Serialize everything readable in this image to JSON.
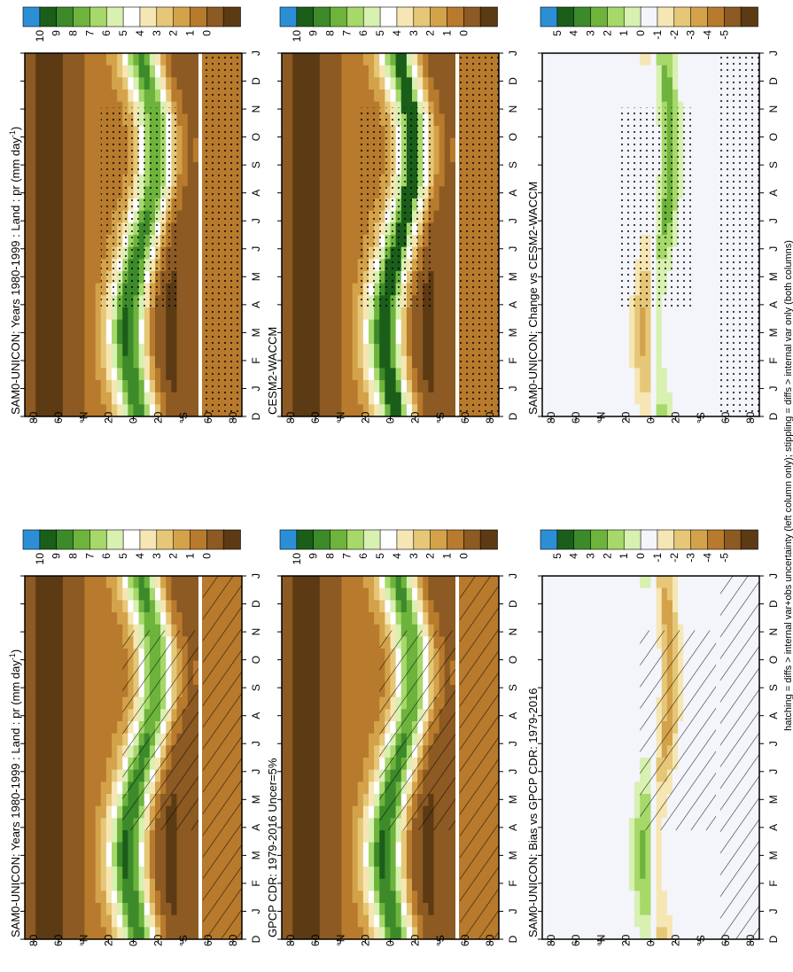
{
  "chart_data": [
    {
      "type": "heatmap",
      "title": "SAM0-UNICON: Years 1980-1999 : Land : pr (mm day",
      "title_sup": "-1",
      "title_tail": ")",
      "x_ticks": [
        "D",
        "J",
        "F",
        "M",
        "A",
        "M",
        "J",
        "J",
        "A",
        "S",
        "O",
        "N",
        "D",
        "J"
      ],
      "y_ticks": [
        "80",
        "60",
        "°N",
        "20",
        "0",
        "20",
        "°S",
        "60",
        "80"
      ],
      "colorbar": [
        "10",
        "9",
        "8",
        "7",
        "6",
        "5",
        "4",
        "3",
        "2",
        "1",
        "0"
      ],
      "overlay": "hatching"
    },
    {
      "type": "heatmap",
      "title": "SAM0-UNICON: Years 1980-1999 : Land : pr (mm day",
      "title_sup": "-1",
      "title_tail": ")",
      "x_ticks": [
        "D",
        "J",
        "F",
        "M",
        "A",
        "M",
        "J",
        "J",
        "A",
        "S",
        "O",
        "N",
        "D",
        "J"
      ],
      "y_ticks": [
        "80",
        "60",
        "°N",
        "20",
        "0",
        "20",
        "°S",
        "60",
        "80"
      ],
      "colorbar": [
        "10",
        "9",
        "8",
        "7",
        "6",
        "5",
        "4",
        "3",
        "2",
        "1",
        "0"
      ],
      "overlay": "stippling"
    },
    {
      "type": "heatmap",
      "title": "GPCP CDR: 1979-2016 Uncer=5%",
      "x_ticks": [
        "D",
        "J",
        "F",
        "M",
        "A",
        "M",
        "J",
        "J",
        "A",
        "S",
        "O",
        "N",
        "D",
        "J"
      ],
      "y_ticks": [
        "80",
        "60",
        "°N",
        "20",
        "0",
        "20",
        "°S",
        "60",
        "80"
      ],
      "colorbar": [
        "10",
        "9",
        "8",
        "7",
        "6",
        "5",
        "4",
        "3",
        "2",
        "1",
        "0"
      ],
      "overlay": "hatching"
    },
    {
      "type": "heatmap",
      "title": "CESM2-WACCM",
      "x_ticks": [
        "D",
        "J",
        "F",
        "M",
        "A",
        "M",
        "J",
        "J",
        "A",
        "S",
        "O",
        "N",
        "D",
        "J"
      ],
      "y_ticks": [
        "80",
        "60",
        "°N",
        "20",
        "0",
        "20",
        "°S",
        "60",
        "80"
      ],
      "colorbar": [
        "10",
        "9",
        "8",
        "7",
        "6",
        "5",
        "4",
        "3",
        "2",
        "1",
        "0"
      ],
      "overlay": "stippling"
    },
    {
      "type": "heatmap",
      "title": "SAM0-UNICON: Bias vs GPCP CDR: 1979-2016",
      "x_ticks": [
        "D",
        "J",
        "F",
        "M",
        "A",
        "M",
        "J",
        "J",
        "A",
        "S",
        "O",
        "N",
        "D",
        "J"
      ],
      "y_ticks": [
        "80",
        "60",
        "°N",
        "20",
        "0",
        "20",
        "°S",
        "60",
        "80"
      ],
      "colorbar": [
        "5",
        "4",
        "3",
        "2",
        "1",
        "0",
        "-1",
        "-2",
        "-3",
        "-4",
        "-5"
      ],
      "overlay": "hatching"
    },
    {
      "type": "heatmap",
      "title": "SAM0-UNICON: Change vs CESM2-WACCM",
      "x_ticks": [
        "D",
        "J",
        "F",
        "M",
        "A",
        "M",
        "J",
        "J",
        "A",
        "S",
        "O",
        "N",
        "D",
        "J"
      ],
      "y_ticks": [
        "80",
        "60",
        "°N",
        "20",
        "0",
        "20",
        "°S",
        "60",
        "80"
      ],
      "colorbar": [
        "5",
        "4",
        "3",
        "2",
        "1",
        "0",
        "-1",
        "-2",
        "-3",
        "-4",
        "-5"
      ],
      "overlay": "stippling"
    }
  ],
  "footnote": "hatching = diffs > internal var+obs uncertainty (left column only); stippling = diffs > internal var only (both columns)",
  "colors": {
    "abs_ramp": [
      "#2c8fd6",
      "#1a5e1a",
      "#3c8a2a",
      "#6db33c",
      "#a6d86a",
      "#d8f0b0",
      "#ffffff",
      "#f6e6b4",
      "#e6c777",
      "#d3a24a",
      "#b87a2c",
      "#8c5a22",
      "#5c3a14"
    ],
    "diff_ramp": [
      "#2c8fd6",
      "#1a5e1a",
      "#3c8a2a",
      "#6db33c",
      "#a6d86a",
      "#d8f0b0",
      "#f3f5fb",
      "#f6e6b4",
      "#e6c777",
      "#d3a24a",
      "#b87a2c",
      "#8c5a22",
      "#5c3a14"
    ]
  }
}
